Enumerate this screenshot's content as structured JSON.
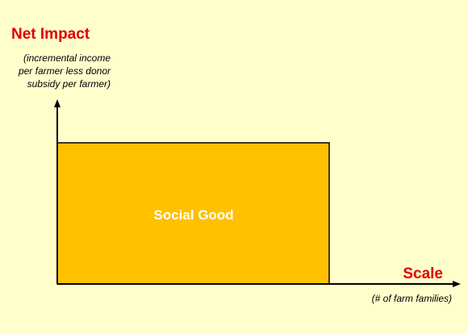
{
  "y_axis": {
    "title": "Net Impact",
    "subtitle_lines": [
      "(incremental income",
      "per farmer less donor",
      "subsidy per farmer)"
    ]
  },
  "x_axis": {
    "title": "Scale",
    "subtitle": "(# of farm families)"
  },
  "area": {
    "label": "Social Good"
  }
}
